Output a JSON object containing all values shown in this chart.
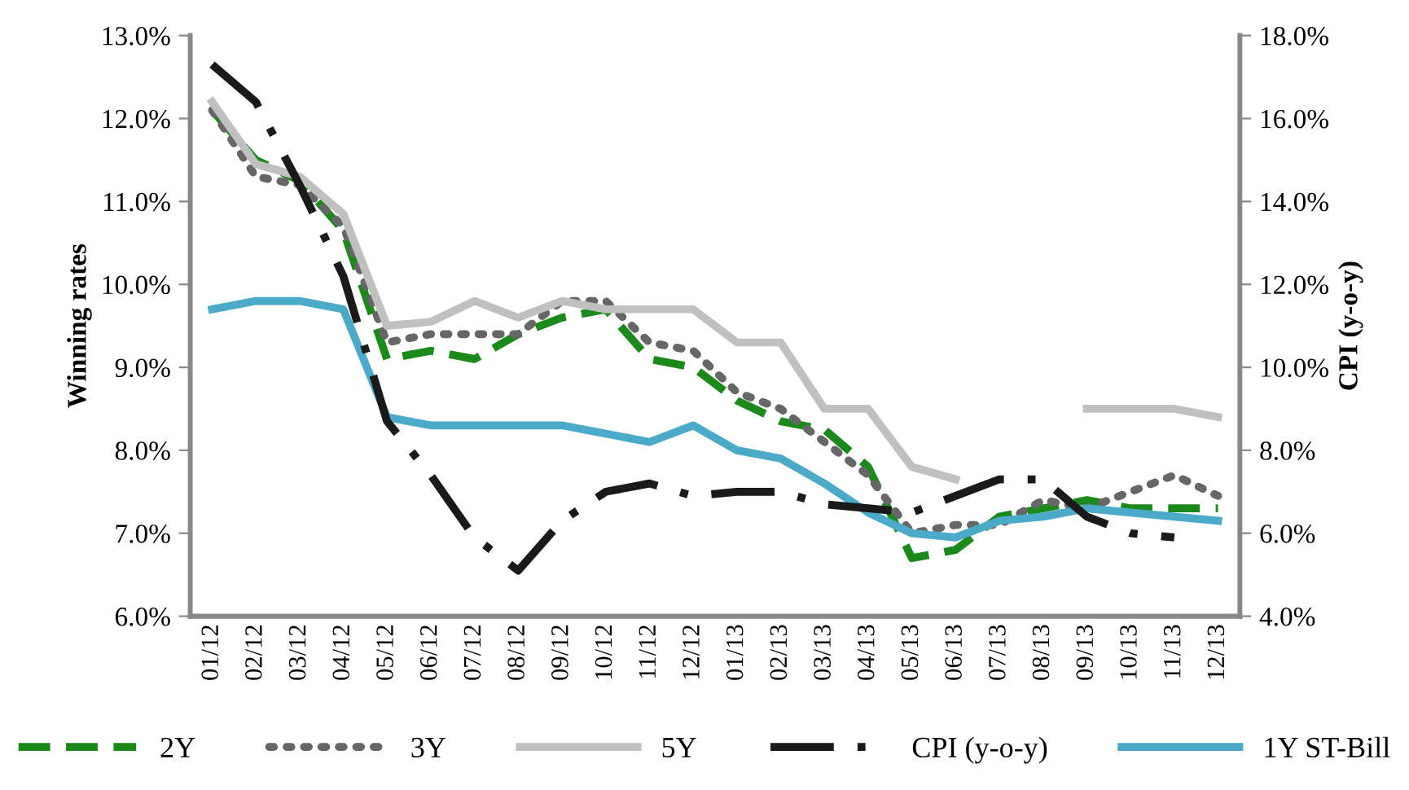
{
  "chart_data": {
    "type": "line",
    "categories": [
      "01/12",
      "02/12",
      "03/12",
      "04/12",
      "05/12",
      "06/12",
      "07/12",
      "08/12",
      "09/12",
      "10/12",
      "11/12",
      "12/12",
      "01/13",
      "02/13",
      "03/13",
      "04/13",
      "05/13",
      "06/13",
      "07/13",
      "08/13",
      "09/13",
      "10/13",
      "11/13",
      "12/13"
    ],
    "series": [
      {
        "name": "2Y",
        "color": "#1a8a1a",
        "line_style": "dashed",
        "values": [
          12.1,
          11.5,
          11.25,
          10.65,
          9.1,
          9.2,
          9.1,
          9.4,
          9.6,
          9.7,
          9.1,
          9.0,
          8.6,
          8.35,
          8.25,
          7.8,
          6.7,
          6.8,
          7.2,
          7.3,
          7.4,
          7.3,
          7.3,
          7.3
        ]
      },
      {
        "name": "3Y",
        "color": "#666666",
        "line_style": "dotted",
        "values": [
          12.1,
          11.3,
          11.2,
          10.7,
          9.3,
          9.4,
          9.4,
          9.4,
          9.8,
          9.8,
          9.3,
          9.2,
          8.7,
          8.5,
          8.1,
          7.7,
          7.0,
          7.1,
          7.1,
          7.4,
          7.3,
          7.5,
          7.7,
          7.45
        ]
      },
      {
        "name": "5Y",
        "color": "#c0c0c0",
        "line_style": "solid",
        "values": [
          12.2,
          11.45,
          11.3,
          10.85,
          9.5,
          9.55,
          9.8,
          9.6,
          9.8,
          9.7,
          9.7,
          9.7,
          9.3,
          9.3,
          8.5,
          8.5,
          7.8,
          7.65,
          null,
          null,
          8.5,
          8.5,
          8.5,
          8.4
        ]
      },
      {
        "name": "CPI (y-o-y)",
        "color": "#1a1a1a",
        "line_style": "dashdot",
        "axis": "y2",
        "values": [
          17.3,
          16.4,
          14.4,
          12.2,
          8.7,
          7.4,
          5.9,
          5.1,
          6.3,
          7.0,
          7.2,
          6.9,
          7.0,
          7.0,
          6.7,
          6.6,
          6.5,
          6.9,
          7.3,
          7.3,
          6.4,
          6.0,
          5.9,
          null
        ]
      },
      {
        "name": "1Y ST-Bill",
        "color": "#4aaac8",
        "line_style": "solid",
        "values": [
          9.7,
          9.8,
          9.8,
          9.7,
          8.4,
          8.3,
          8.3,
          8.3,
          8.3,
          8.2,
          8.1,
          8.3,
          8.0,
          7.9,
          7.6,
          7.25,
          7.0,
          6.95,
          7.15,
          7.2,
          7.3,
          7.25,
          7.2,
          7.15
        ]
      }
    ],
    "ylabel": "Winning rates",
    "y2label": "CPI (y-o-y)",
    "ylim": [
      6.0,
      13.0
    ],
    "yticks": [
      {
        "value": 6,
        "label": "6.0%"
      },
      {
        "value": 7,
        "label": "7.0%"
      },
      {
        "value": 8,
        "label": "8.0%"
      },
      {
        "value": 9,
        "label": "9.0%"
      },
      {
        "value": 10,
        "label": "10.0%"
      },
      {
        "value": 11,
        "label": "11.0%"
      },
      {
        "value": 12,
        "label": "12.0%"
      },
      {
        "value": 13,
        "label": "13.0%"
      }
    ],
    "y2lim": [
      4.0,
      18.0
    ],
    "y2ticks": [
      {
        "value": 4,
        "label": "4.0%"
      },
      {
        "value": 6,
        "label": "6.0%"
      },
      {
        "value": 8,
        "label": "8.0%"
      },
      {
        "value": 10,
        "label": "10.0%"
      },
      {
        "value": 12,
        "label": "12.0%"
      },
      {
        "value": 14,
        "label": "14.0%"
      },
      {
        "value": 16,
        "label": "16.0%"
      },
      {
        "value": 18,
        "label": "18.0%"
      }
    ],
    "grid": false,
    "legend": "bottom"
  }
}
